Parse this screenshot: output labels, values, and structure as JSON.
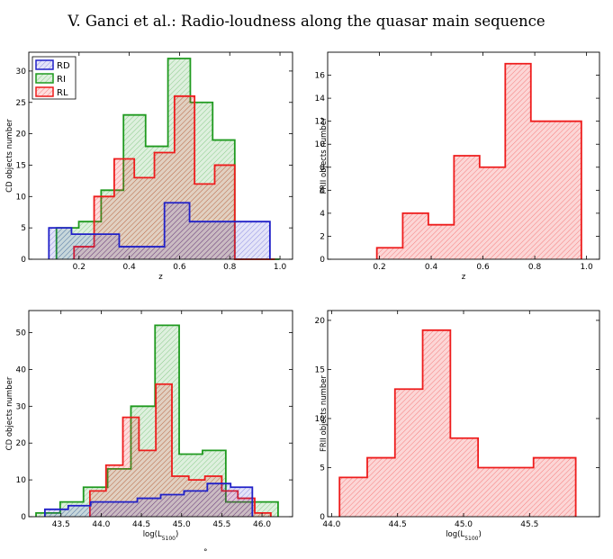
{
  "page": {
    "header": "V. Ganci et al.: Radio-loudness along the quasar main sequence",
    "footer_fragment": "°"
  },
  "colors": {
    "RD": "#2020c8",
    "RI": "#1f9a1f",
    "RL": "#ee1c1c"
  },
  "chart_data": [
    {
      "type": "histogram",
      "panel": "top-left",
      "xlabel": "z",
      "ylabel": "CD objects number",
      "xlim": [
        0.0,
        1.05
      ],
      "ylim": [
        0,
        33
      ],
      "xticks": [
        0.2,
        0.4,
        0.6,
        0.8,
        1.0
      ],
      "xtick_labels": [
        "0.2",
        "0.4",
        "0.6",
        "0.8",
        "1.0"
      ],
      "yticks": [
        0,
        5,
        10,
        15,
        20,
        25,
        30
      ],
      "ytick_labels": [
        "0",
        "5",
        "10",
        "15",
        "20",
        "25",
        "30"
      ],
      "legend": {
        "position": "top-left",
        "entries": [
          "RD",
          "RI",
          "RL"
        ]
      },
      "series": [
        {
          "name": "RI",
          "color": "#1f9a1f",
          "edges": [
            0.11,
            0.199,
            0.288,
            0.377,
            0.465,
            0.554,
            0.643,
            0.732,
            0.82,
            0.909,
            0.998
          ],
          "counts": [
            5,
            6,
            11,
            23,
            18,
            32,
            25,
            19,
            0,
            0
          ]
        },
        {
          "name": "RL",
          "color": "#ee1c1c",
          "edges": [
            0.18,
            0.26,
            0.34,
            0.42,
            0.5,
            0.58,
            0.66,
            0.74,
            0.82,
            0.9,
            0.98
          ],
          "counts": [
            2,
            10,
            16,
            13,
            17,
            26,
            12,
            15,
            0,
            0
          ]
        },
        {
          "name": "RD",
          "color": "#2020c8",
          "edges": [
            0.08,
            0.17,
            0.27,
            0.36,
            0.45,
            0.54,
            0.64,
            0.73,
            0.82,
            0.92,
            0.96
          ],
          "counts": [
            5,
            4,
            4,
            2,
            2,
            9,
            6,
            6,
            6,
            6
          ]
        }
      ]
    },
    {
      "type": "histogram",
      "panel": "top-right",
      "xlabel": "z",
      "ylabel": "FRII objects number",
      "xlim": [
        0.0,
        1.05
      ],
      "ylim": [
        0,
        18
      ],
      "xticks": [
        0.2,
        0.4,
        0.6,
        0.8,
        1.0
      ],
      "xtick_labels": [
        "0.2",
        "0.4",
        "0.6",
        "0.8",
        "1.0"
      ],
      "yticks": [
        0,
        2,
        4,
        6,
        8,
        10,
        12,
        14,
        16
      ],
      "ytick_labels": [
        "0",
        "2",
        "4",
        "6",
        "8",
        "10",
        "12",
        "14",
        "16"
      ],
      "series": [
        {
          "color": "#ee1c1c",
          "edges": [
            0.19,
            0.29,
            0.389,
            0.488,
            0.587,
            0.686,
            0.785,
            0.98
          ],
          "counts": [
            1,
            4,
            3,
            9,
            8,
            17,
            12
          ]
        }
      ]
    },
    {
      "type": "histogram",
      "panel": "bottom-left",
      "xlabel": "log(L5100)",
      "ylabel": "CD objects number",
      "xlim": [
        43.1,
        46.38
      ],
      "ylim": [
        0,
        56
      ],
      "xticks": [
        43.5,
        44.0,
        44.5,
        45.0,
        45.5,
        46.0
      ],
      "xtick_labels": [
        "43.5",
        "44.0",
        "44.5",
        "45.0",
        "45.5",
        "46.0"
      ],
      "yticks": [
        0,
        10,
        20,
        30,
        40,
        50
      ],
      "ytick_labels": [
        "0",
        "10",
        "20",
        "30",
        "40",
        "50"
      ],
      "series": [
        {
          "name": "RI",
          "color": "#1f9a1f",
          "edges": [
            43.19,
            43.49,
            43.78,
            44.08,
            44.37,
            44.67,
            44.97,
            45.26,
            45.55,
            45.85,
            46.2
          ],
          "counts": [
            1,
            4,
            8,
            13,
            30,
            52,
            17,
            18,
            4,
            4
          ]
        },
        {
          "name": "RL",
          "color": "#ee1c1c",
          "edges": [
            43.86,
            44.06,
            44.27,
            44.47,
            44.68,
            44.88,
            45.09,
            45.29,
            45.5,
            45.7,
            45.91,
            46.11
          ],
          "counts": [
            7,
            14,
            27,
            18,
            36,
            11,
            10,
            11,
            7,
            5,
            1
          ]
        },
        {
          "name": "RD",
          "color": "#2020c8",
          "edges": [
            43.3,
            43.59,
            43.87,
            44.16,
            44.45,
            44.74,
            45.03,
            45.32,
            45.61,
            45.88
          ],
          "counts": [
            2,
            3,
            4,
            4,
            5,
            6,
            7,
            9,
            8
          ]
        }
      ]
    },
    {
      "type": "histogram",
      "panel": "bottom-right",
      "xlabel": "log(L5100)",
      "ylabel": "FRII objects number",
      "xlim": [
        43.97,
        46.03
      ],
      "ylim": [
        0,
        21
      ],
      "xticks": [
        44.0,
        44.5,
        45.0,
        45.5
      ],
      "xtick_labels": [
        "44.0",
        "44.5",
        "45.0",
        "45.5"
      ],
      "yticks": [
        0,
        5,
        10,
        15,
        20
      ],
      "ytick_labels": [
        "0",
        "5",
        "10",
        "15",
        "20"
      ],
      "series": [
        {
          "color": "#ee1c1c",
          "edges": [
            44.06,
            44.27,
            44.48,
            44.69,
            44.9,
            45.11,
            45.32,
            45.53,
            45.74,
            45.85
          ],
          "counts": [
            4,
            6,
            13,
            19,
            8,
            5,
            5,
            6,
            6
          ]
        }
      ]
    }
  ]
}
